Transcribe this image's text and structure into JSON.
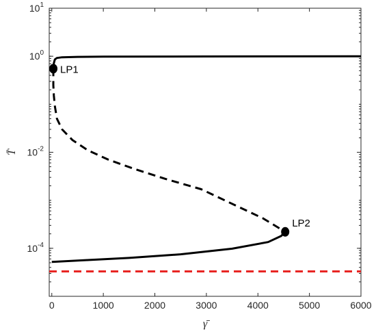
{
  "chart_data": {
    "type": "line",
    "xlabel": "γ̄",
    "ylabel": "T̄",
    "xscale": "linear",
    "yscale": "log",
    "xlim": [
      -50,
      6000
    ],
    "ylim_log10": [
      -5,
      1
    ],
    "grid": false,
    "x_ticks": [
      {
        "value": 0,
        "label": "0"
      },
      {
        "value": 1000,
        "label": "1000"
      },
      {
        "value": 2000,
        "label": "2000"
      },
      {
        "value": 3000,
        "label": "3000"
      },
      {
        "value": 4000,
        "label": "4000"
      },
      {
        "value": 5000,
        "label": "5000"
      },
      {
        "value": 6000,
        "label": "6000"
      }
    ],
    "y_ticks": [
      {
        "log10": 1,
        "base": "10",
        "exp": "1"
      },
      {
        "log10": 0,
        "base": "10",
        "exp": "0"
      },
      {
        "log10": -2,
        "base": "10",
        "exp": "-2"
      },
      {
        "log10": -4,
        "base": "10",
        "exp": "-4"
      }
    ],
    "series": [
      {
        "style": "solid",
        "color": "#000000",
        "points": [
          [
            30,
            0.55
          ],
          [
            40,
            0.72
          ],
          [
            60,
            0.86
          ],
          [
            100,
            0.92
          ],
          [
            200,
            0.95
          ],
          [
            500,
            0.97
          ],
          [
            1000,
            0.98
          ],
          [
            3000,
            0.99
          ],
          [
            6000,
            1.0
          ]
        ]
      },
      {
        "style": "dashed",
        "color": "#000000",
        "points": [
          [
            30,
            0.55
          ],
          [
            30,
            0.25
          ],
          [
            40,
            0.15
          ],
          [
            60,
            0.09
          ],
          [
            100,
            0.05
          ],
          [
            200,
            0.03
          ],
          [
            400,
            0.018
          ],
          [
            700,
            0.011
          ],
          [
            1100,
            0.007
          ],
          [
            1600,
            0.0045
          ],
          [
            2200,
            0.0028
          ],
          [
            2900,
            0.0017
          ],
          [
            3600,
            0.00075
          ],
          [
            4100,
            0.00042
          ],
          [
            4530,
            0.00022
          ]
        ]
      },
      {
        "style": "solid",
        "color": "#000000",
        "points": [
          [
            4530,
            0.00022
          ],
          [
            4450,
            0.00018
          ],
          [
            4200,
            0.000135
          ],
          [
            3500,
            9.8e-05
          ],
          [
            2500,
            7.5e-05
          ],
          [
            1500,
            6.3e-05
          ],
          [
            700,
            5.7e-05
          ],
          [
            0,
            5.2e-05
          ]
        ]
      },
      {
        "style": "dashed",
        "color": "#e8211f",
        "points": [
          [
            -50,
            3.3e-05
          ],
          [
            6000,
            3.3e-05
          ]
        ]
      }
    ],
    "annotations": [
      {
        "label": "LP1",
        "x": 30,
        "y": 0.55
      },
      {
        "label": "LP2",
        "x": 4530,
        "y": 0.00022
      }
    ]
  }
}
